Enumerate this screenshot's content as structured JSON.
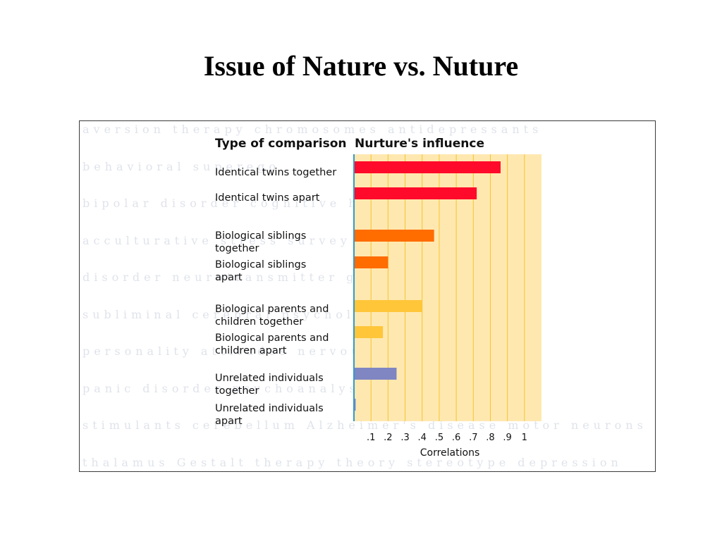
{
  "slide": {
    "title": "Issue of Nature vs. Nuture"
  },
  "background_words": [
    "aversion therapy chromosomes antidepressants",
    "behavioral superego",
    "bipolar disorder cognitive hallucinations",
    "acculturative stress survey personality",
    "disorder neurotransmitter group therapy",
    "subliminal cerebral psychology Type B",
    "personality attitudes nervous panic disorders",
    "panic disorder psychoanalysis social norms",
    "stimulants cerebellum Alzheimer's disease motor neurons",
    "thalamus Gestalt therapy theory stereotype depression"
  ],
  "chart_data": {
    "type": "bar",
    "orientation": "horizontal",
    "category_header": "Type of comparison",
    "value_header": "Nurture's influence",
    "categories": [
      [
        "Identical twins together"
      ],
      [
        "Identical twins apart"
      ],
      [
        "Biological siblings",
        "together"
      ],
      [
        "Biological siblings",
        "apart"
      ],
      [
        "Biological parents and",
        "children together"
      ],
      [
        "Biological parents and",
        "children apart"
      ],
      [
        "Unrelated individuals",
        "together"
      ],
      [
        "Unrelated individuals",
        "apart"
      ]
    ],
    "values": [
      0.86,
      0.72,
      0.47,
      0.2,
      0.4,
      0.17,
      0.25,
      0.01
    ],
    "bar_colors": [
      "#ff0a2a",
      "#ff0a2a",
      "#ff6c00",
      "#ff6c00",
      "#ffc63a",
      "#ffc63a",
      "#7f86c2",
      "#7f86c2"
    ],
    "xlabel": "Correlations",
    "xticks": [
      0.1,
      0.2,
      0.3,
      0.4,
      0.5,
      0.6,
      0.7,
      0.8,
      0.9,
      1.0
    ],
    "xtick_labels": [
      ".1",
      ".2",
      ".3",
      ".4",
      ".5",
      ".6",
      ".7",
      ".8",
      ".9",
      "1"
    ],
    "xlim": [
      0,
      1.1
    ],
    "grid": "vertical",
    "plot_background": "#ffe8b0",
    "grid_color": "#f4c430",
    "axis_color": "#3399cc"
  }
}
